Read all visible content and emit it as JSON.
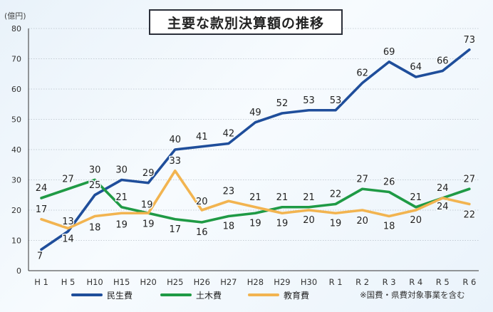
{
  "chart_data": {
    "type": "line",
    "title": "主要な款別決算額の推移",
    "ylabel": "(億円)",
    "xlabel": "",
    "ylim": [
      0,
      80
    ],
    "yticks": [
      0,
      10,
      20,
      30,
      40,
      50,
      60,
      70,
      80
    ],
    "grid": true,
    "legend_position": "bottom",
    "categories": [
      "H 1",
      "H 5",
      "H10",
      "H15",
      "H20",
      "H25",
      "H26",
      "H27",
      "H28",
      "H29",
      "H30",
      "R 1",
      "R 2",
      "R 3",
      "R 4",
      "R 5",
      "R 6"
    ],
    "series": [
      {
        "name": "民生費",
        "color": "#1f4e9b",
        "values": [
          7,
          13,
          25,
          30,
          29,
          40,
          41,
          42,
          49,
          52,
          53,
          53,
          62,
          69,
          64,
          66,
          73
        ]
      },
      {
        "name": "土木費",
        "color": "#1f9a45",
        "values": [
          24,
          27,
          30,
          21,
          19,
          17,
          16,
          18,
          19,
          21,
          21,
          22,
          27,
          26,
          21,
          24,
          27
        ]
      },
      {
        "name": "教育費",
        "color": "#f2b450",
        "values": [
          17,
          14,
          18,
          19,
          19,
          33,
          20,
          23,
          21,
          19,
          20,
          19,
          20,
          18,
          20,
          24,
          22
        ]
      }
    ],
    "footnote": "※国費・県費対象事業を含む"
  }
}
